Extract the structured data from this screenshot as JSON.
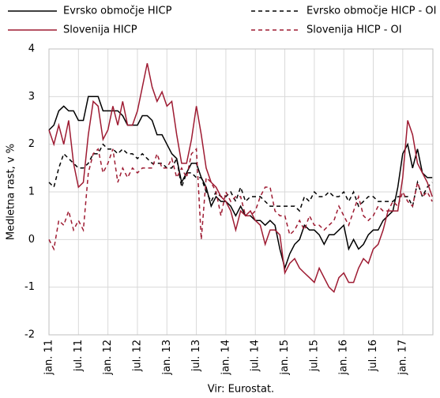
{
  "chart_data": {
    "type": "line",
    "y_label": "Medletna rast, v %",
    "source": "Vir: Eurostat.",
    "categories": [
      "jan. 11",
      null,
      null,
      null,
      null,
      null,
      "jul. 11",
      null,
      null,
      null,
      null,
      null,
      "jan. 12",
      null,
      null,
      null,
      null,
      null,
      "jul. 12",
      null,
      null,
      null,
      null,
      null,
      "jan. 13",
      null,
      null,
      null,
      null,
      null,
      "jul. 13",
      null,
      null,
      null,
      null,
      null,
      "jan. 14",
      null,
      null,
      null,
      null,
      null,
      "jul. 14",
      null,
      null,
      null,
      null,
      null,
      "jan. 15",
      null,
      null,
      null,
      null,
      null,
      "jul. 15",
      null,
      null,
      null,
      null,
      null,
      "jan. 16",
      null,
      null,
      null,
      null,
      null,
      "jul. 16",
      null,
      null,
      null,
      null,
      null,
      "jan. 17",
      null,
      null,
      null,
      null,
      null,
      null
    ],
    "ylim": [
      -2,
      4
    ],
    "yticks": [
      -2,
      -1,
      0,
      1,
      2,
      3,
      4
    ],
    "grid": true,
    "series": [
      {
        "name": "Evrsko območje HICP",
        "color": "#000000",
        "dash": false,
        "values": [
          2.3,
          2.4,
          2.7,
          2.8,
          2.7,
          2.7,
          2.5,
          2.5,
          3.0,
          3.0,
          3.0,
          2.7,
          2.7,
          2.7,
          2.7,
          2.6,
          2.4,
          2.4,
          2.4,
          2.6,
          2.6,
          2.5,
          2.2,
          2.2,
          2.0,
          1.8,
          1.7,
          1.2,
          1.4,
          1.6,
          1.6,
          1.3,
          1.1,
          0.7,
          0.9,
          0.8,
          0.8,
          0.7,
          0.5,
          0.7,
          0.5,
          0.5,
          0.4,
          0.4,
          0.3,
          0.4,
          0.3,
          -0.2,
          -0.6,
          -0.3,
          -0.1,
          0.0,
          0.3,
          0.2,
          0.2,
          0.1,
          -0.1,
          0.1,
          0.1,
          0.2,
          0.3,
          -0.2,
          0.0,
          -0.2,
          -0.1,
          0.1,
          0.2,
          0.2,
          0.4,
          0.5,
          0.6,
          1.1,
          1.8,
          2.0,
          1.5,
          1.9,
          1.4,
          1.3,
          1.3
        ]
      },
      {
        "name": "Evrsko območje HICP - OI",
        "color": "#000000",
        "dash": true,
        "values": [
          1.2,
          1.1,
          1.5,
          1.8,
          1.7,
          1.6,
          1.5,
          1.5,
          1.6,
          1.8,
          1.8,
          2.0,
          1.9,
          1.9,
          1.8,
          1.9,
          1.8,
          1.8,
          1.7,
          1.8,
          1.7,
          1.6,
          1.6,
          1.6,
          1.5,
          1.5,
          1.7,
          1.1,
          1.4,
          1.4,
          1.3,
          1.3,
          1.0,
          0.8,
          1.0,
          0.9,
          0.9,
          1.0,
          0.8,
          1.1,
          0.8,
          0.9,
          0.9,
          0.9,
          0.8,
          0.7,
          0.7,
          0.7,
          0.7,
          0.7,
          0.7,
          0.6,
          0.9,
          0.8,
          1.0,
          0.9,
          0.9,
          1.0,
          0.9,
          0.9,
          1.0,
          0.8,
          1.0,
          0.7,
          0.8,
          0.9,
          0.9,
          0.8,
          0.8,
          0.8,
          0.8,
          0.9,
          0.9,
          0.9,
          0.7,
          1.2,
          0.9,
          1.1,
          1.2
        ]
      },
      {
        "name": "Slovenija HICP",
        "color": "#9e1b32",
        "dash": false,
        "values": [
          2.3,
          2.0,
          2.4,
          2.0,
          2.5,
          1.6,
          1.1,
          1.2,
          2.2,
          2.9,
          2.8,
          2.1,
          2.3,
          2.8,
          2.4,
          2.9,
          2.4,
          2.4,
          2.7,
          3.2,
          3.7,
          3.2,
          2.9,
          3.1,
          2.8,
          2.9,
          2.2,
          1.6,
          1.6,
          2.1,
          2.8,
          2.2,
          1.5,
          1.2,
          1.1,
          0.9,
          0.8,
          0.6,
          0.2,
          0.6,
          0.5,
          0.6,
          0.4,
          0.3,
          -0.1,
          0.2,
          0.2,
          0.1,
          -0.7,
          -0.5,
          -0.4,
          -0.6,
          -0.7,
          -0.8,
          -0.9,
          -0.6,
          -0.8,
          -1.0,
          -1.1,
          -0.8,
          -0.7,
          -0.9,
          -0.9,
          -0.6,
          -0.4,
          -0.5,
          -0.2,
          -0.1,
          0.2,
          0.6,
          0.6,
          0.6,
          1.3,
          2.5,
          2.2,
          1.6,
          1.4,
          1.2,
          0.9
        ]
      },
      {
        "name": "Slovenija HICP - OI",
        "color": "#9e1b32",
        "dash": true,
        "values": [
          0.0,
          -0.2,
          0.4,
          0.3,
          0.6,
          0.2,
          0.4,
          0.2,
          1.4,
          1.8,
          1.9,
          1.4,
          1.6,
          1.9,
          1.2,
          1.5,
          1.3,
          1.5,
          1.4,
          1.5,
          1.5,
          1.5,
          1.8,
          1.5,
          1.5,
          1.7,
          1.3,
          1.5,
          1.3,
          1.8,
          1.9,
          0.0,
          1.3,
          1.2,
          1.0,
          0.5,
          1.0,
          0.8,
          0.9,
          0.9,
          0.5,
          0.5,
          0.6,
          0.9,
          1.1,
          1.1,
          0.6,
          0.5,
          0.5,
          0.1,
          0.2,
          0.4,
          0.2,
          0.5,
          0.3,
          0.3,
          0.2,
          0.3,
          0.4,
          0.7,
          0.5,
          0.3,
          0.6,
          0.9,
          0.5,
          0.4,
          0.5,
          0.7,
          0.6,
          0.6,
          0.8,
          0.7,
          1.0,
          0.8,
          0.7,
          1.2,
          0.9,
          1.0,
          0.8
        ]
      }
    ]
  }
}
